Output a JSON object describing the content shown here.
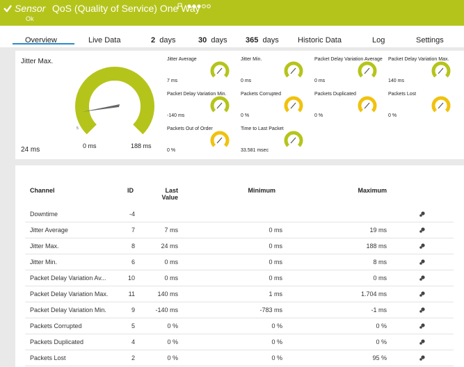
{
  "header": {
    "sensor_label": "Sensor",
    "title": "QoS (Quality of Service) One Way",
    "status": "Ok"
  },
  "tabs": [
    {
      "label": "Overview"
    },
    {
      "label": "Live Data"
    },
    {
      "count": "2",
      "label": "days"
    },
    {
      "count": "30",
      "label": "days"
    },
    {
      "count": "365",
      "label": "days"
    },
    {
      "label": "Historic Data"
    },
    {
      "label": "Log"
    },
    {
      "label": "Settings"
    }
  ],
  "main_gauge": {
    "name": "Jitter Max.",
    "value": "24 ms",
    "min": "0 ms",
    "max": "188 ms",
    "marker": "5",
    "color": "#b5c41b"
  },
  "gauges": [
    {
      "name": "Jitter Average",
      "value": "7 ms",
      "color": "#b5c41b"
    },
    {
      "name": "Jitter Min.",
      "value": "0 ms",
      "color": "#b5c41b"
    },
    {
      "name": "Packet Delay Variation Average",
      "value": "0 ms",
      "color": "#b5c41b"
    },
    {
      "name": "Packet Delay Variation Max.",
      "value": "140 ms",
      "color": "#b5c41b"
    },
    {
      "name": "Packet Delay Variation Min.",
      "value": "-140 ms",
      "color": "#b5c41b"
    },
    {
      "name": "Packets Corrupted",
      "value": "0 %",
      "color": "#f0c20e"
    },
    {
      "name": "Packets Duplicated",
      "value": "0 %",
      "color": "#f0c20e"
    },
    {
      "name": "Packets Lost",
      "value": "0 %",
      "color": "#f0c20e"
    },
    {
      "name": "Packets Out of Order",
      "value": "0 %",
      "color": "#f0c20e"
    },
    {
      "name": "Time to Last Packet",
      "value": "33.581 msec",
      "color": "#b5c41b"
    }
  ],
  "table": {
    "columns": [
      "Channel",
      "ID",
      "Last Value",
      "Minimum",
      "Maximum"
    ],
    "rows": [
      [
        "Downtime",
        "-4",
        null,
        null,
        null
      ],
      [
        "Jitter Average",
        "7",
        "7 ms",
        "0 ms",
        "19 ms"
      ],
      [
        "Jitter Max.",
        "8",
        "24 ms",
        "0 ms",
        "188 ms"
      ],
      [
        "Jitter Min.",
        "6",
        "0 ms",
        "0 ms",
        "8 ms"
      ],
      [
        "Packet Delay Variation Av...",
        "10",
        "0 ms",
        "0 ms",
        "0 ms"
      ],
      [
        "Packet Delay Variation Max.",
        "11",
        "140 ms",
        "1 ms",
        "1.704 ms"
      ],
      [
        "Packet Delay Variation Min.",
        "9",
        "-140 ms",
        "-783 ms",
        "-1 ms"
      ],
      [
        "Packets Corrupted",
        "5",
        "0 %",
        "0 %",
        "0 %"
      ],
      [
        "Packets Duplicated",
        "4",
        "0 %",
        "0 %",
        "0 %"
      ],
      [
        "Packets Lost",
        "2",
        "0 %",
        "0 %",
        "95 %"
      ]
    ]
  }
}
